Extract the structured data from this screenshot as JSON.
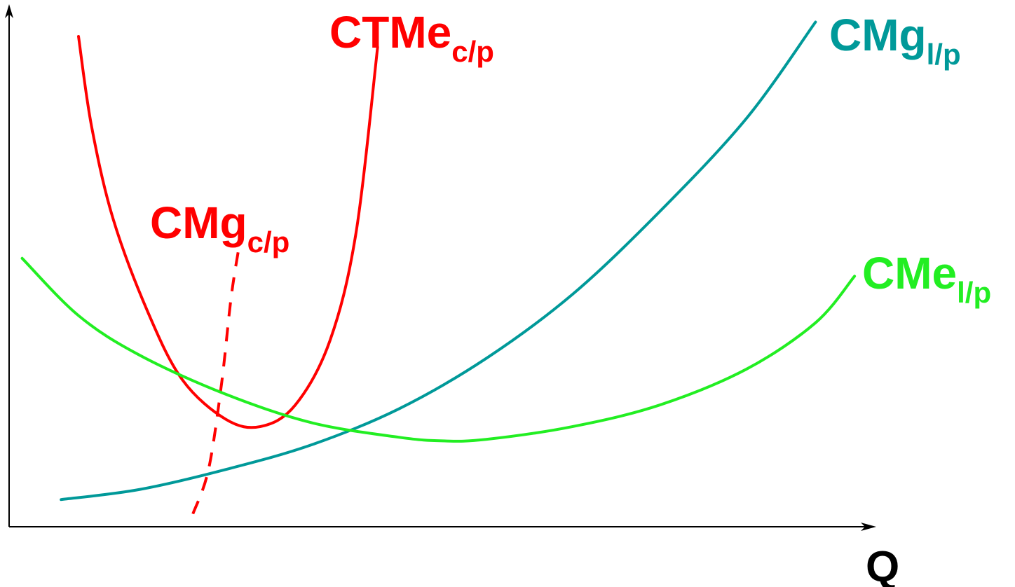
{
  "chart_data": {
    "type": "line",
    "title": "",
    "xlabel": "Q",
    "ylabel": "",
    "grid": false,
    "colors": {
      "short_run": "#ff0000",
      "long_run_marginal": "#009999",
      "long_run_average": "#22ee22",
      "axis": "#000000"
    },
    "series": [
      {
        "id": "ctme_cp",
        "label_main": "CTMe",
        "label_sub": "c/p",
        "color": "#ff0000",
        "style": "solid",
        "x": [
          0.8,
          0.95,
          1.2,
          1.6,
          2.0,
          2.5,
          2.9,
          3.3,
          3.7,
          4.0,
          4.25
        ],
        "y": [
          6.85,
          5.6,
          4.3,
          3.0,
          2.05,
          1.5,
          1.4,
          1.7,
          2.6,
          4.1,
          6.7
        ]
      },
      {
        "id": "cmg_cp",
        "label_main": "CMg",
        "label_sub": "c/p",
        "color": "#ff0000",
        "style": "dashed",
        "x": [
          2.12,
          2.3,
          2.45,
          2.56,
          2.65
        ],
        "y": [
          0.18,
          0.8,
          2.0,
          3.2,
          3.9
        ]
      },
      {
        "id": "cmg_lp",
        "label_main": "CMg",
        "label_sub": "l/p",
        "color": "#009999",
        "style": "solid",
        "x": [
          0.6,
          1.5,
          2.5,
          3.5,
          4.5,
          5.5,
          6.5,
          7.5,
          8.5,
          9.3
        ],
        "y": [
          0.38,
          0.52,
          0.8,
          1.15,
          1.65,
          2.35,
          3.25,
          4.4,
          5.7,
          7.05
        ]
      },
      {
        "id": "cme_lp",
        "label_main": "CMe",
        "label_sub": "l/p",
        "color": "#22ee22",
        "style": "solid",
        "x": [
          0.15,
          0.8,
          1.5,
          2.5,
          3.5,
          4.5,
          5.0,
          5.5,
          6.5,
          7.5,
          8.5,
          9.3,
          9.75
        ],
        "y": [
          3.75,
          2.95,
          2.4,
          1.85,
          1.45,
          1.25,
          1.2,
          1.22,
          1.4,
          1.7,
          2.2,
          2.85,
          3.5
        ]
      }
    ],
    "xlim": [
      0,
      10
    ],
    "ylim": [
      0,
      7.3
    ]
  }
}
